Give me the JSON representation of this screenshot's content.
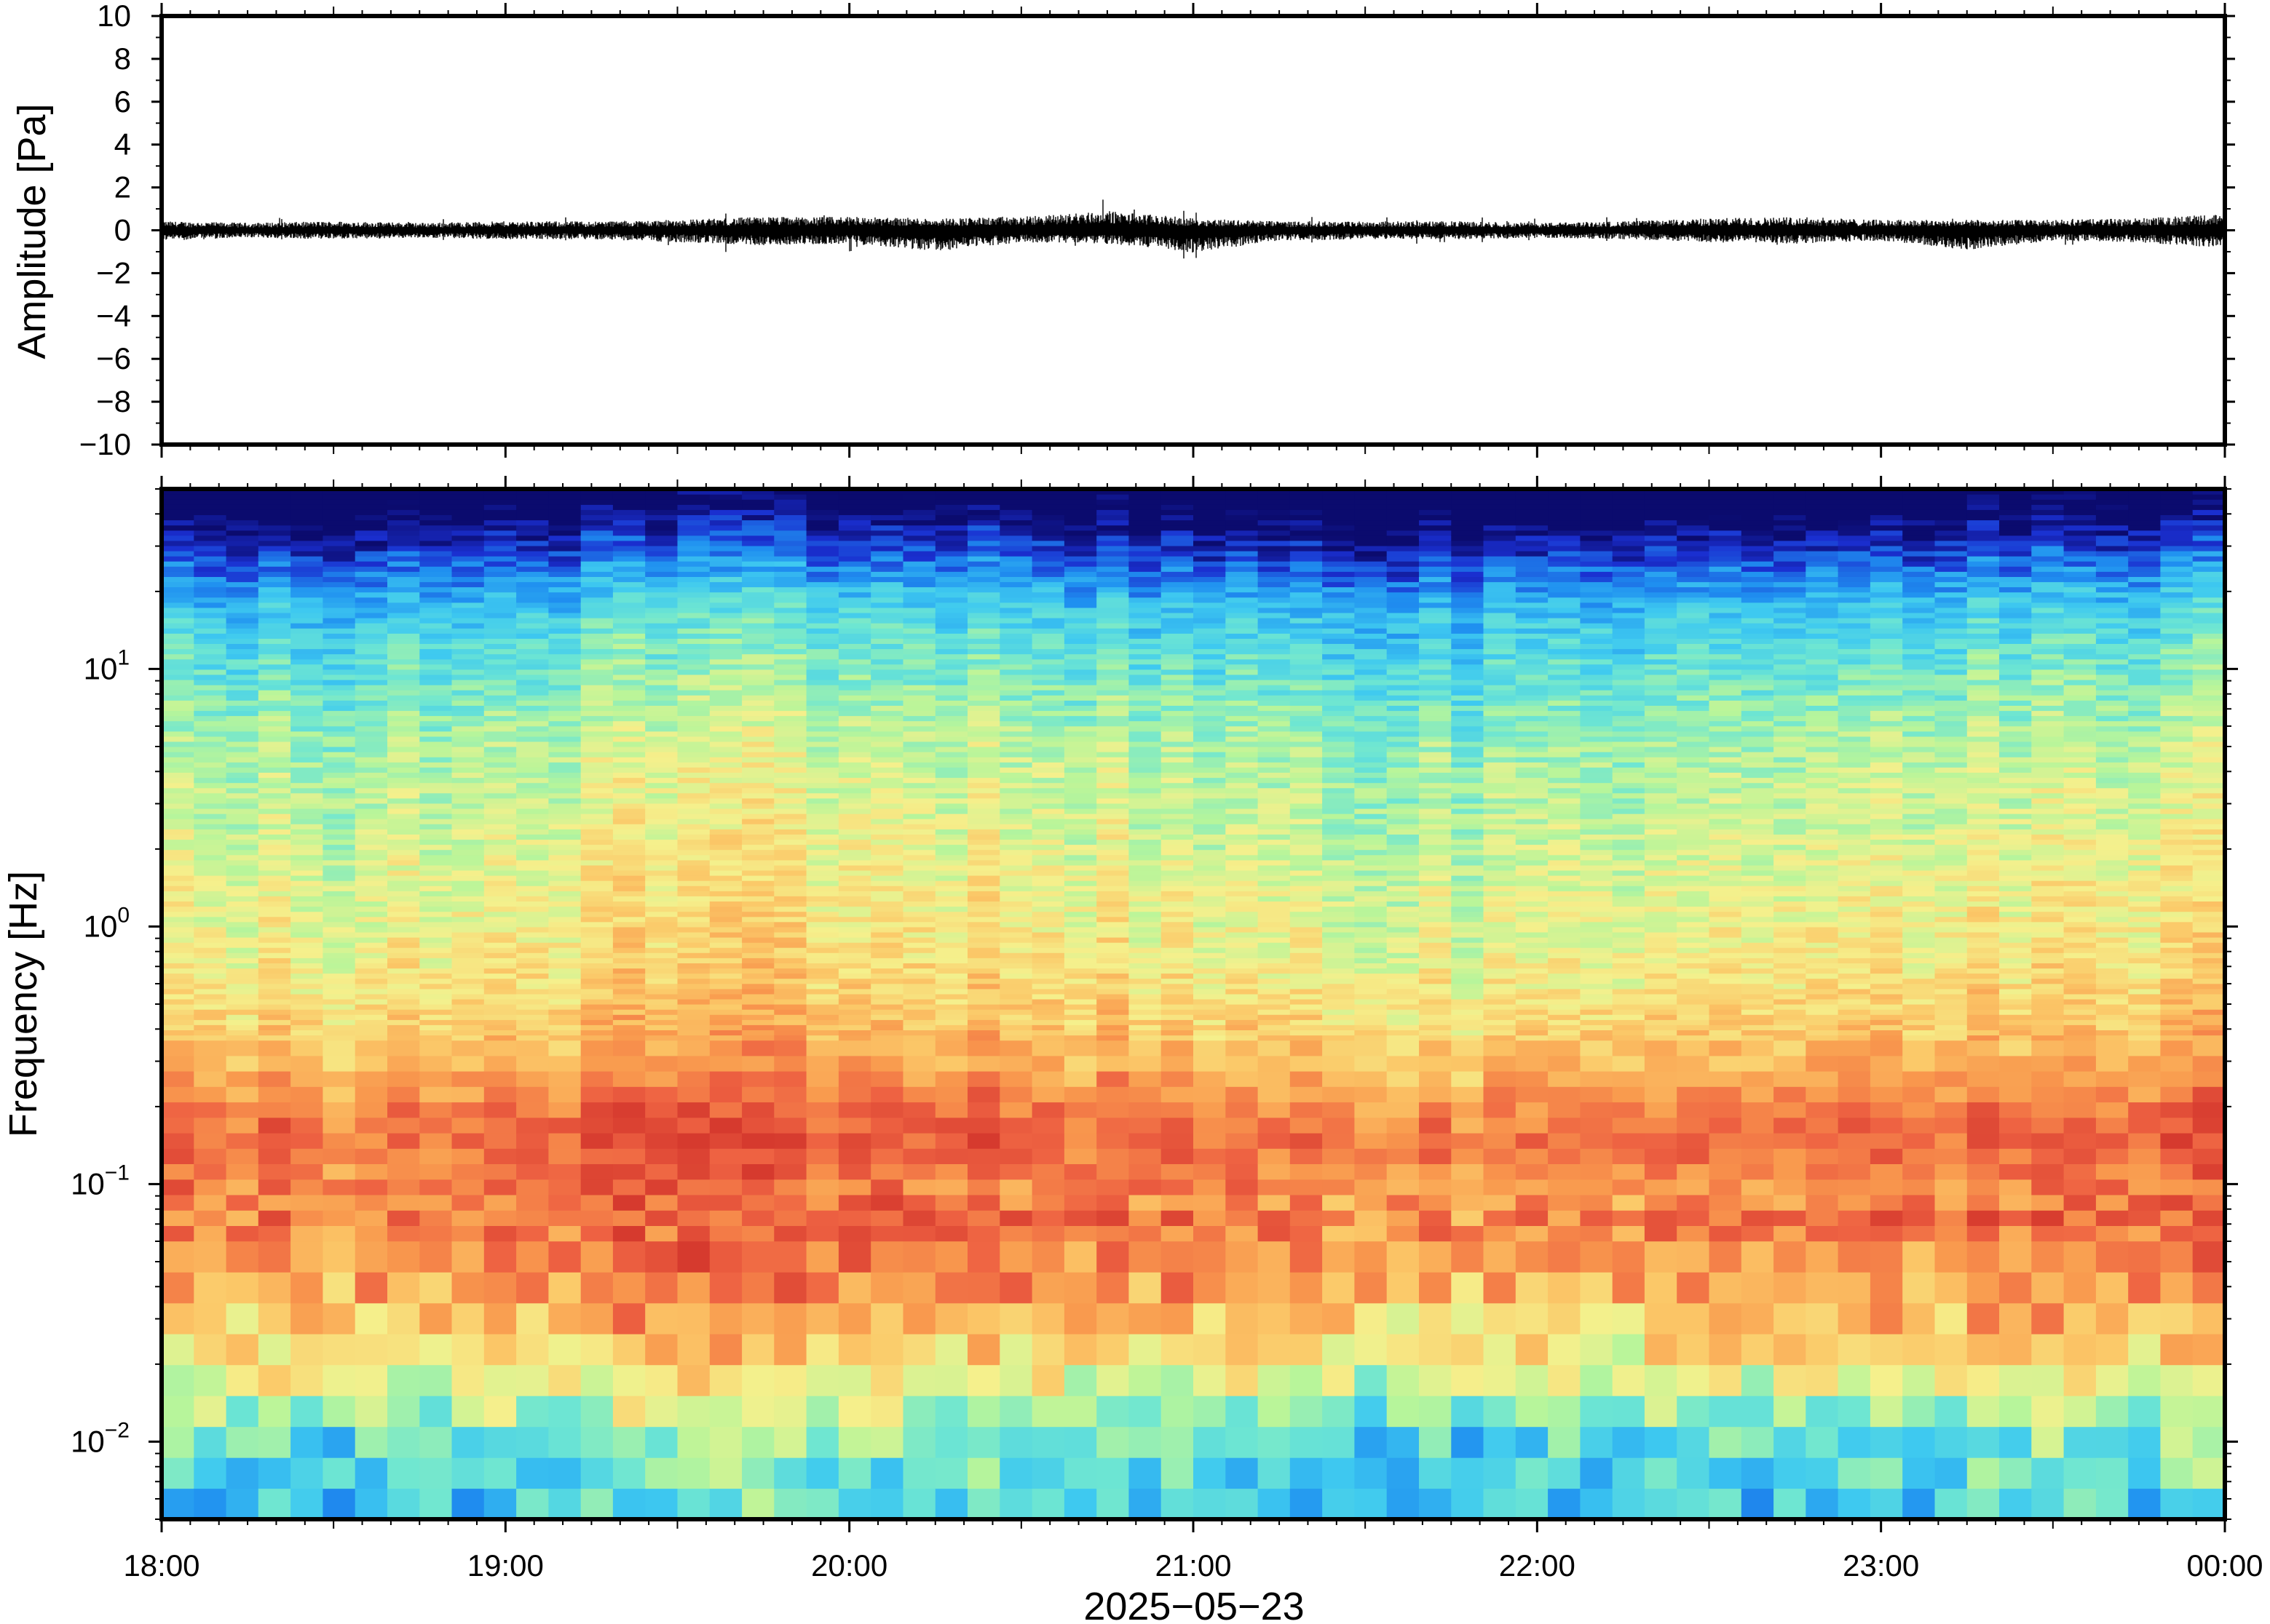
{
  "chart_data": [
    {
      "type": "line",
      "title": "",
      "xlabel": "",
      "ylabel": "Amplitude [Pa]",
      "ylim": [
        -10,
        10
      ],
      "y_ticks": [
        10,
        8,
        6,
        4,
        2,
        0,
        -2,
        -4,
        -6,
        -8,
        -10
      ],
      "y_tick_labels": [
        "10",
        "8",
        "6",
        "4",
        "2",
        "0",
        "−2",
        "−4",
        "−6",
        "−8",
        "−10"
      ],
      "grid": false,
      "legend": "none",
      "series": [
        {
          "color": "#000000",
          "x": [
            "18:00",
            "18:15",
            "18:30",
            "18:45",
            "19:00",
            "19:15",
            "19:30",
            "19:45",
            "20:00",
            "20:15",
            "20:30",
            "20:45",
            "21:00",
            "21:15",
            "21:30",
            "21:45",
            "22:00",
            "22:15",
            "22:30",
            "22:45",
            "23:00",
            "23:15",
            "23:30",
            "23:45",
            "00:00"
          ],
          "envelope_max": [
            0.6,
            0.5,
            0.6,
            0.5,
            0.6,
            0.6,
            0.7,
            0.9,
            0.9,
            0.8,
            0.9,
            1.3,
            0.8,
            0.6,
            0.6,
            0.6,
            0.5,
            0.6,
            0.8,
            0.9,
            0.7,
            0.7,
            0.7,
            0.8,
            1.1
          ],
          "envelope_min": [
            -0.7,
            -0.5,
            -0.6,
            -0.5,
            -0.6,
            -0.6,
            -0.8,
            -1.0,
            -0.9,
            -1.4,
            -0.8,
            -0.9,
            -1.5,
            -0.7,
            -0.6,
            -0.6,
            -0.5,
            -0.6,
            -0.8,
            -0.9,
            -0.7,
            -1.3,
            -0.7,
            -0.8,
            -1.2
          ]
        }
      ]
    },
    {
      "type": "heatmap",
      "title": "",
      "xlabel": "2025−05−23",
      "ylabel": "Frequency [Hz]",
      "y_scale": "log",
      "ylim": [
        0.005,
        50
      ],
      "y_ticks": [
        0.01,
        0.1,
        1,
        10
      ],
      "x_ticks": [
        "18:00",
        "19:00",
        "20:00",
        "21:00",
        "22:00",
        "23:00",
        "00:00"
      ],
      "colormap": "jet",
      "colormap_stops": [
        "#0b0b6e",
        "#1a2fd0",
        "#1f8ff0",
        "#3ec9f0",
        "#6ee6d2",
        "#b8f59a",
        "#f5f08c",
        "#fbc868",
        "#f99a4e",
        "#ee6242",
        "#d63a2e"
      ],
      "z_description": "relative power spectral density, 0 = low (dark blue), 1 = high (red)",
      "y": [
        0.006,
        0.01,
        0.02,
        0.04,
        0.07,
        0.1,
        0.16,
        0.3,
        0.6,
        1.0,
        2.0,
        5.0,
        10.0,
        20.0,
        35.0,
        45.0
      ],
      "level_profile": [
        0.32,
        0.4,
        0.62,
        0.8,
        0.86,
        0.84,
        0.9,
        0.74,
        0.64,
        0.6,
        0.56,
        0.5,
        0.4,
        0.28,
        0.12,
        0.04
      ],
      "x_hours": [
        18.0,
        18.5,
        19.0,
        19.5,
        20.0,
        20.5,
        21.0,
        21.5,
        22.0,
        22.5,
        23.0,
        23.5,
        24.0
      ],
      "time_modulation": [
        0.02,
        -0.03,
        0.01,
        0.06,
        0.05,
        0.03,
        -0.02,
        -0.05,
        -0.04,
        0.0,
        0.02,
        0.01,
        0.04
      ]
    }
  ]
}
